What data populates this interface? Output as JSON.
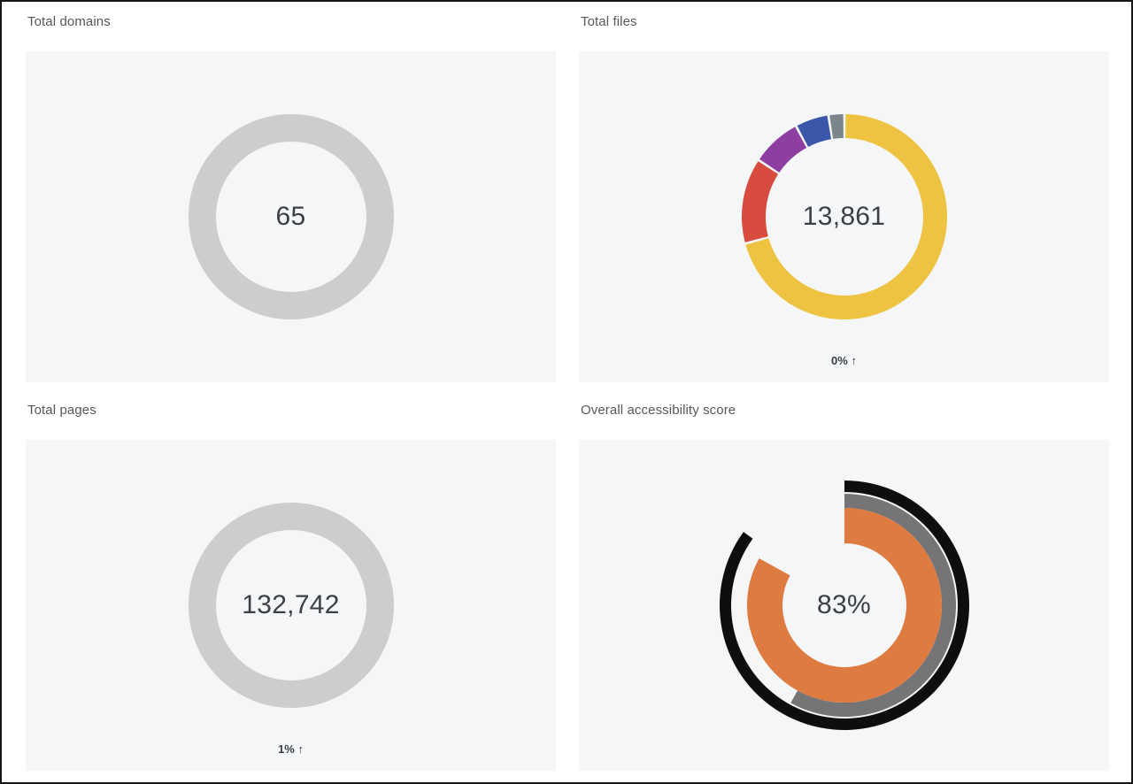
{
  "page": {
    "background": "#ffffff",
    "frame_color": "#161616",
    "panel_background": "#f5f6f8"
  },
  "cards": [
    {
      "title": "Total domains",
      "center_value": "65",
      "badge": ""
    },
    {
      "title": "Total files",
      "center_value": "13,861",
      "badge": "0% ↑"
    },
    {
      "title": "Total pages",
      "center_value": "132,742",
      "badge": "1% ↑"
    },
    {
      "title": "Overall accessibility score",
      "center_value": "83%",
      "badge": ""
    }
  ],
  "chart_data": [
    {
      "type": "donut",
      "title": "Total domains",
      "center_label": "65",
      "size": 240,
      "outer_radius": 116,
      "inner_radius": 85,
      "segments": [
        {
          "name": "total-domains-ring",
          "percent": 100,
          "color": "#cdcdcf"
        }
      ]
    },
    {
      "type": "donut",
      "title": "Total files",
      "center_label": "13,861",
      "size": 240,
      "outer_radius": 116,
      "inner_radius": 89,
      "separator_gap_degrees": 1.4,
      "segments": [
        {
          "name": "files-segment-1",
          "percent": 70.8,
          "color": "#eec342"
        },
        {
          "name": "files-segment-2",
          "percent": 13.5,
          "color": "#d84b3f"
        },
        {
          "name": "files-segment-3",
          "percent": 7.9,
          "color": "#8c3fa1"
        },
        {
          "name": "files-segment-4",
          "percent": 5.3,
          "color": "#3b57a9"
        },
        {
          "name": "files-segment-5",
          "percent": 2.5,
          "color": "#7b858c"
        }
      ],
      "change": {
        "text": "0%",
        "direction": "up",
        "arrow": "↑"
      }
    },
    {
      "type": "donut",
      "title": "Total pages",
      "center_label": "132,742",
      "size": 240,
      "outer_radius": 116,
      "inner_radius": 85,
      "segments": [
        {
          "name": "total-pages-ring",
          "percent": 100,
          "color": "#cdcdcf"
        }
      ],
      "change": {
        "text": "1%",
        "direction": "up",
        "arrow": "↑"
      }
    },
    {
      "type": "multi_ring_gauge",
      "title": "Overall accessibility score",
      "center_label": "83%",
      "size": 290,
      "rings": [
        {
          "name": "score-outer-ring",
          "percent": 85,
          "color": "#0e0e0e",
          "outer_radius": 141,
          "inner_radius": 128
        },
        {
          "name": "score-middle-ring",
          "percent": 58,
          "color": "#757577",
          "outer_radius": 126,
          "inner_radius": 110
        },
        {
          "name": "score-inner-ring",
          "percent": 83,
          "color": "#dd7b41",
          "outer_radius": 110,
          "inner_radius": 70
        }
      ]
    }
  ]
}
